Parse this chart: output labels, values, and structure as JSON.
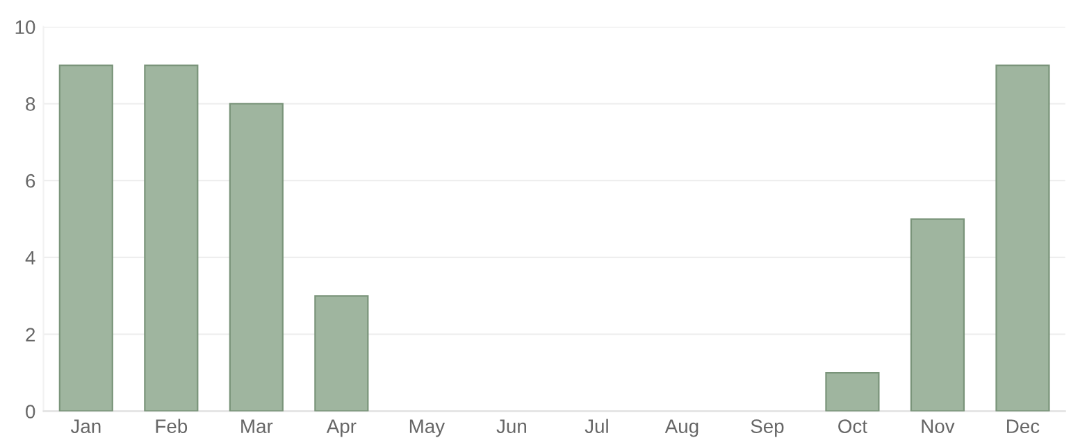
{
  "chart_data": {
    "type": "bar",
    "categories": [
      "Jan",
      "Feb",
      "Mar",
      "Apr",
      "May",
      "Jun",
      "Jul",
      "Aug",
      "Sep",
      "Oct",
      "Nov",
      "Dec"
    ],
    "values": [
      9,
      9,
      8,
      3,
      0,
      0,
      0,
      0,
      0,
      1,
      5,
      9
    ],
    "color": "#9fb59f",
    "ylim": [
      0,
      10
    ],
    "yticks": [
      0,
      2,
      4,
      6,
      8,
      10
    ],
    "grid": "y"
  }
}
